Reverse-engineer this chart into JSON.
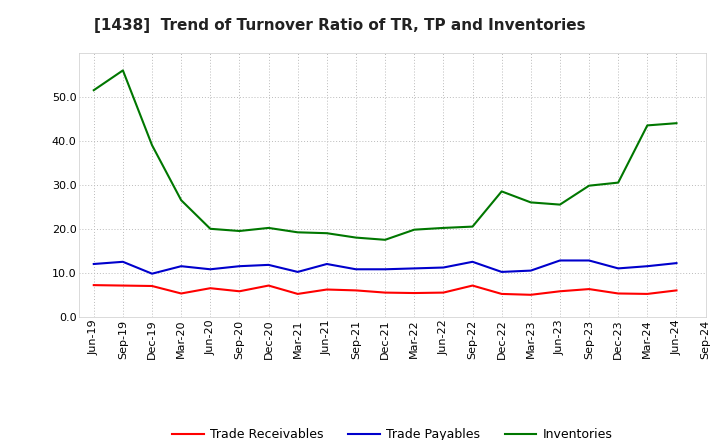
{
  "title": "[1438]  Trend of Turnover Ratio of TR, TP and Inventories",
  "x_labels": [
    "Jun-19",
    "Sep-19",
    "Dec-19",
    "Mar-20",
    "Jun-20",
    "Sep-20",
    "Dec-20",
    "Mar-21",
    "Jun-21",
    "Sep-21",
    "Dec-21",
    "Mar-22",
    "Jun-22",
    "Sep-22",
    "Dec-22",
    "Mar-23",
    "Jun-23",
    "Sep-23",
    "Dec-23",
    "Mar-24",
    "Jun-24",
    "Sep-24"
  ],
  "trade_receivables": [
    7.2,
    7.1,
    7.0,
    5.3,
    6.5,
    5.8,
    7.1,
    5.2,
    6.2,
    6.0,
    5.5,
    5.4,
    5.5,
    7.1,
    5.2,
    5.0,
    5.8,
    6.3,
    5.3,
    5.2,
    6.0,
    null
  ],
  "trade_payables": [
    12.0,
    12.5,
    9.8,
    11.5,
    10.8,
    11.5,
    11.8,
    10.2,
    12.0,
    10.8,
    10.8,
    11.0,
    11.2,
    12.5,
    10.2,
    10.5,
    12.8,
    12.8,
    11.0,
    11.5,
    12.2,
    null
  ],
  "inventories": [
    51.5,
    56.0,
    39.0,
    26.5,
    20.0,
    19.5,
    20.2,
    19.2,
    19.0,
    18.0,
    17.5,
    19.8,
    20.2,
    20.5,
    28.5,
    26.0,
    25.5,
    29.8,
    30.5,
    43.5,
    44.0,
    null
  ],
  "colors": {
    "trade_receivables": "#ff0000",
    "trade_payables": "#0000cc",
    "inventories": "#007700"
  },
  "ylim": [
    0,
    60
  ],
  "yticks": [
    0.0,
    10.0,
    20.0,
    30.0,
    40.0,
    50.0
  ],
  "background_color": "#ffffff",
  "plot_bg_color": "#ffffff",
  "legend_labels": [
    "Trade Receivables",
    "Trade Payables",
    "Inventories"
  ],
  "title_fontsize": 11,
  "tick_fontsize": 8
}
